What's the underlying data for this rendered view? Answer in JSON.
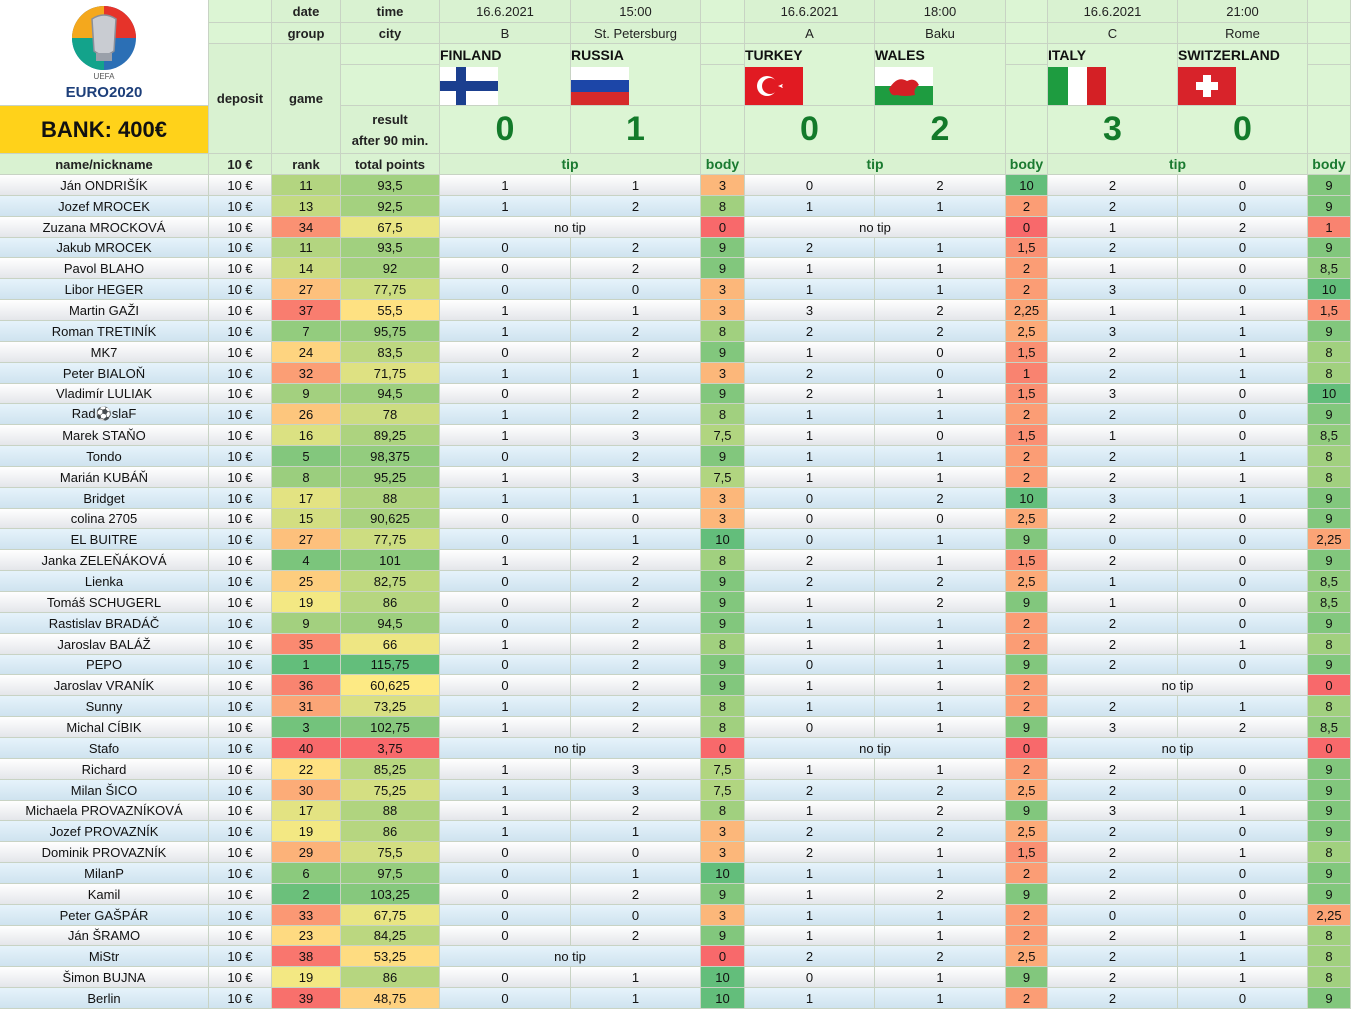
{
  "bank_label": "BANK: 400€",
  "logo": {
    "top": "UEFA",
    "text": "EURO2020"
  },
  "labels": {
    "date": "date",
    "time": "time",
    "group": "group",
    "city": "city",
    "deposit": "deposit",
    "game": "game",
    "result1": "result",
    "result2": "after 90 min.",
    "name_col": "name/nickname",
    "deposit_col": "10 €",
    "rank_col": "rank",
    "points_col": "total points",
    "tip": "tip",
    "body": "body",
    "no_tip": "no tip"
  },
  "matches": [
    {
      "date": "16.6.2021",
      "time": "15:00",
      "group": "B",
      "city": "St. Petersburg",
      "home": "FINLAND",
      "away": "RUSSIA",
      "home_flag": "finland-flag-icon",
      "away_flag": "russia-flag-icon",
      "home_score": "0",
      "away_score": "1"
    },
    {
      "date": "16.6.2021",
      "time": "18:00",
      "group": "A",
      "city": "Baku",
      "home": "TURKEY",
      "away": "WALES",
      "home_flag": "turkey-flag-icon",
      "away_flag": "wales-flag-icon",
      "home_score": "0",
      "away_score": "2"
    },
    {
      "date": "16.6.2021",
      "time": "21:00",
      "group": "C",
      "city": "Rome",
      "home": "ITALY",
      "away": "SWITZERLAND",
      "home_flag": "italy-flag-icon",
      "away_flag": "switzerland-flag-icon",
      "home_score": "3",
      "away_score": "0"
    }
  ],
  "players": [
    {
      "name": "Ján ONDRIŠÍK",
      "deposit": "10 €",
      "rank": "11",
      "points": "93,5",
      "tips": [
        [
          "1",
          "1",
          "3"
        ],
        [
          "0",
          "2",
          "10"
        ],
        [
          "2",
          "0",
          "9"
        ]
      ]
    },
    {
      "name": "Jozef MROCEK",
      "deposit": "10 €",
      "rank": "13",
      "points": "92,5",
      "tips": [
        [
          "1",
          "2",
          "8"
        ],
        [
          "1",
          "1",
          "2"
        ],
        [
          "2",
          "0",
          "9"
        ]
      ]
    },
    {
      "name": "Zuzana MROCKOVÁ",
      "deposit": "10 €",
      "rank": "34",
      "points": "67,5",
      "tips": [
        [
          null,
          null,
          "0"
        ],
        [
          null,
          null,
          "0"
        ],
        [
          "1",
          "2",
          "1"
        ]
      ]
    },
    {
      "name": "Jakub MROCEK",
      "deposit": "10 €",
      "rank": "11",
      "points": "93,5",
      "tips": [
        [
          "0",
          "2",
          "9"
        ],
        [
          "2",
          "1",
          "1,5"
        ],
        [
          "2",
          "0",
          "9"
        ]
      ]
    },
    {
      "name": "Pavol BLAHO",
      "deposit": "10 €",
      "rank": "14",
      "points": "92",
      "tips": [
        [
          "0",
          "2",
          "9"
        ],
        [
          "1",
          "1",
          "2"
        ],
        [
          "1",
          "0",
          "8,5"
        ]
      ]
    },
    {
      "name": "Libor HEGER",
      "deposit": "10 €",
      "rank": "27",
      "points": "77,75",
      "tips": [
        [
          "0",
          "0",
          "3"
        ],
        [
          "1",
          "1",
          "2"
        ],
        [
          "3",
          "0",
          "10"
        ]
      ]
    },
    {
      "name": "Martin GAŽI",
      "deposit": "10 €",
      "rank": "37",
      "points": "55,5",
      "tips": [
        [
          "1",
          "1",
          "3"
        ],
        [
          "3",
          "2",
          "2,25"
        ],
        [
          "1",
          "1",
          "1,5"
        ]
      ]
    },
    {
      "name": "Roman TRETINÍK",
      "deposit": "10 €",
      "rank": "7",
      "points": "95,75",
      "tips": [
        [
          "1",
          "2",
          "8"
        ],
        [
          "2",
          "2",
          "2,5"
        ],
        [
          "3",
          "1",
          "9"
        ]
      ]
    },
    {
      "name": "MK7",
      "deposit": "10 €",
      "rank": "24",
      "points": "83,5",
      "tips": [
        [
          "0",
          "2",
          "9"
        ],
        [
          "1",
          "0",
          "1,5"
        ],
        [
          "2",
          "1",
          "8"
        ]
      ]
    },
    {
      "name": "Peter BIALOŇ",
      "deposit": "10 €",
      "rank": "32",
      "points": "71,75",
      "tips": [
        [
          "1",
          "1",
          "3"
        ],
        [
          "2",
          "0",
          "1"
        ],
        [
          "2",
          "1",
          "8"
        ]
      ]
    },
    {
      "name": "Vladimír LULIAK",
      "deposit": "10 €",
      "rank": "9",
      "points": "94,5",
      "tips": [
        [
          "0",
          "2",
          "9"
        ],
        [
          "2",
          "1",
          "1,5"
        ],
        [
          "3",
          "0",
          "10"
        ]
      ]
    },
    {
      "name": "Rad⚽slaF",
      "deposit": "10 €",
      "rank": "26",
      "points": "78",
      "tips": [
        [
          "1",
          "2",
          "8"
        ],
        [
          "1",
          "1",
          "2"
        ],
        [
          "2",
          "0",
          "9"
        ]
      ]
    },
    {
      "name": "Marek STAŇO",
      "deposit": "10 €",
      "rank": "16",
      "points": "89,25",
      "tips": [
        [
          "1",
          "3",
          "7,5"
        ],
        [
          "1",
          "0",
          "1,5"
        ],
        [
          "1",
          "0",
          "8,5"
        ]
      ]
    },
    {
      "name": "Tondo",
      "deposit": "10 €",
      "rank": "5",
      "points": "98,375",
      "tips": [
        [
          "0",
          "2",
          "9"
        ],
        [
          "1",
          "1",
          "2"
        ],
        [
          "2",
          "1",
          "8"
        ]
      ]
    },
    {
      "name": "Marián KUBÁŇ",
      "deposit": "10 €",
      "rank": "8",
      "points": "95,25",
      "tips": [
        [
          "1",
          "3",
          "7,5"
        ],
        [
          "1",
          "1",
          "2"
        ],
        [
          "2",
          "1",
          "8"
        ]
      ]
    },
    {
      "name": "Bridget",
      "deposit": "10 €",
      "rank": "17",
      "points": "88",
      "tips": [
        [
          "1",
          "1",
          "3"
        ],
        [
          "0",
          "2",
          "10"
        ],
        [
          "3",
          "1",
          "9"
        ]
      ]
    },
    {
      "name": "colina 2705",
      "deposit": "10 €",
      "rank": "15",
      "points": "90,625",
      "tips": [
        [
          "0",
          "0",
          "3"
        ],
        [
          "0",
          "0",
          "2,5"
        ],
        [
          "2",
          "0",
          "9"
        ]
      ]
    },
    {
      "name": "EL BUITRE",
      "deposit": "10 €",
      "rank": "27",
      "points": "77,75",
      "tips": [
        [
          "0",
          "1",
          "10"
        ],
        [
          "0",
          "1",
          "9"
        ],
        [
          "0",
          "0",
          "2,25"
        ]
      ]
    },
    {
      "name": "Janka ZELEŇÁKOVÁ",
      "deposit": "10 €",
      "rank": "4",
      "points": "101",
      "tips": [
        [
          "1",
          "2",
          "8"
        ],
        [
          "2",
          "1",
          "1,5"
        ],
        [
          "2",
          "0",
          "9"
        ]
      ]
    },
    {
      "name": "Lienka",
      "deposit": "10 €",
      "rank": "25",
      "points": "82,75",
      "tips": [
        [
          "0",
          "2",
          "9"
        ],
        [
          "2",
          "2",
          "2,5"
        ],
        [
          "1",
          "0",
          "8,5"
        ]
      ]
    },
    {
      "name": "Tomáš SCHUGERL",
      "deposit": "10 €",
      "rank": "19",
      "points": "86",
      "tips": [
        [
          "0",
          "2",
          "9"
        ],
        [
          "1",
          "2",
          "9"
        ],
        [
          "1",
          "0",
          "8,5"
        ]
      ]
    },
    {
      "name": "Rastislav BRADÁČ",
      "deposit": "10 €",
      "rank": "9",
      "points": "94,5",
      "tips": [
        [
          "0",
          "2",
          "9"
        ],
        [
          "1",
          "1",
          "2"
        ],
        [
          "2",
          "0",
          "9"
        ]
      ]
    },
    {
      "name": "Jaroslav BALÁŽ",
      "deposit": "10 €",
      "rank": "35",
      "points": "66",
      "tips": [
        [
          "1",
          "2",
          "8"
        ],
        [
          "1",
          "1",
          "2"
        ],
        [
          "2",
          "1",
          "8"
        ]
      ]
    },
    {
      "name": "PEPO",
      "deposit": "10 €",
      "rank": "1",
      "points": "115,75",
      "tips": [
        [
          "0",
          "2",
          "9"
        ],
        [
          "0",
          "1",
          "9"
        ],
        [
          "2",
          "0",
          "9"
        ]
      ]
    },
    {
      "name": "Jaroslav VRANÍK",
      "deposit": "10 €",
      "rank": "36",
      "points": "60,625",
      "tips": [
        [
          "0",
          "2",
          "9"
        ],
        [
          "1",
          "1",
          "2"
        ],
        [
          null,
          null,
          "0"
        ]
      ]
    },
    {
      "name": "Sunny",
      "deposit": "10 €",
      "rank": "31",
      "points": "73,25",
      "tips": [
        [
          "1",
          "2",
          "8"
        ],
        [
          "1",
          "1",
          "2"
        ],
        [
          "2",
          "1",
          "8"
        ]
      ]
    },
    {
      "name": "Michal CÍBIK",
      "deposit": "10 €",
      "rank": "3",
      "points": "102,75",
      "tips": [
        [
          "1",
          "2",
          "8"
        ],
        [
          "0",
          "1",
          "9"
        ],
        [
          "3",
          "2",
          "8,5"
        ]
      ]
    },
    {
      "name": "Stafo",
      "deposit": "10 €",
      "rank": "40",
      "points": "3,75",
      "tips": [
        [
          null,
          null,
          "0"
        ],
        [
          null,
          null,
          "0"
        ],
        [
          null,
          null,
          "0"
        ]
      ]
    },
    {
      "name": "Richard",
      "deposit": "10 €",
      "rank": "22",
      "points": "85,25",
      "tips": [
        [
          "1",
          "3",
          "7,5"
        ],
        [
          "1",
          "1",
          "2"
        ],
        [
          "2",
          "0",
          "9"
        ]
      ]
    },
    {
      "name": "Milan ŠICO",
      "deposit": "10 €",
      "rank": "30",
      "points": "75,25",
      "tips": [
        [
          "1",
          "3",
          "7,5"
        ],
        [
          "2",
          "2",
          "2,5"
        ],
        [
          "2",
          "0",
          "9"
        ]
      ]
    },
    {
      "name": "Michaela PROVAZNÍKOVÁ",
      "deposit": "10 €",
      "rank": "17",
      "points": "88",
      "tips": [
        [
          "1",
          "2",
          "8"
        ],
        [
          "1",
          "2",
          "9"
        ],
        [
          "3",
          "1",
          "9"
        ]
      ]
    },
    {
      "name": "Jozef PROVAZNÍK",
      "deposit": "10 €",
      "rank": "19",
      "points": "86",
      "tips": [
        [
          "1",
          "1",
          "3"
        ],
        [
          "2",
          "2",
          "2,5"
        ],
        [
          "2",
          "0",
          "9"
        ]
      ]
    },
    {
      "name": "Dominik PROVAZNÍK",
      "deposit": "10 €",
      "rank": "29",
      "points": "75,5",
      "tips": [
        [
          "0",
          "0",
          "3"
        ],
        [
          "2",
          "1",
          "1,5"
        ],
        [
          "2",
          "1",
          "8"
        ]
      ]
    },
    {
      "name": "MilanP",
      "deposit": "10 €",
      "rank": "6",
      "points": "97,5",
      "tips": [
        [
          "0",
          "1",
          "10"
        ],
        [
          "1",
          "1",
          "2"
        ],
        [
          "2",
          "0",
          "9"
        ]
      ]
    },
    {
      "name": "Kamil",
      "deposit": "10 €",
      "rank": "2",
      "points": "103,25",
      "tips": [
        [
          "0",
          "2",
          "9"
        ],
        [
          "1",
          "2",
          "9"
        ],
        [
          "2",
          "0",
          "9"
        ]
      ]
    },
    {
      "name": "Peter GAŠPÁR",
      "deposit": "10 €",
      "rank": "33",
      "points": "67,75",
      "tips": [
        [
          "0",
          "0",
          "3"
        ],
        [
          "1",
          "1",
          "2"
        ],
        [
          "0",
          "0",
          "2,25"
        ]
      ]
    },
    {
      "name": "Ján ŠRAMO",
      "deposit": "10 €",
      "rank": "23",
      "points": "84,25",
      "tips": [
        [
          "0",
          "2",
          "9"
        ],
        [
          "1",
          "1",
          "2"
        ],
        [
          "2",
          "1",
          "8"
        ]
      ]
    },
    {
      "name": "MiStr",
      "deposit": "10 €",
      "rank": "38",
      "points": "53,25",
      "tips": [
        [
          null,
          null,
          "0"
        ],
        [
          "2",
          "2",
          "2,5"
        ],
        [
          "2",
          "1",
          "8"
        ]
      ]
    },
    {
      "name": "Šimon BUJNA",
      "deposit": "10 €",
      "rank": "19",
      "points": "86",
      "tips": [
        [
          "0",
          "1",
          "10"
        ],
        [
          "0",
          "1",
          "9"
        ],
        [
          "2",
          "1",
          "8"
        ]
      ]
    },
    {
      "name": "Berlin",
      "deposit": "10 €",
      "rank": "39",
      "points": "48,75",
      "tips": [
        [
          "0",
          "1",
          "10"
        ],
        [
          "1",
          "1",
          "2"
        ],
        [
          "2",
          "0",
          "9"
        ]
      ]
    }
  ]
}
